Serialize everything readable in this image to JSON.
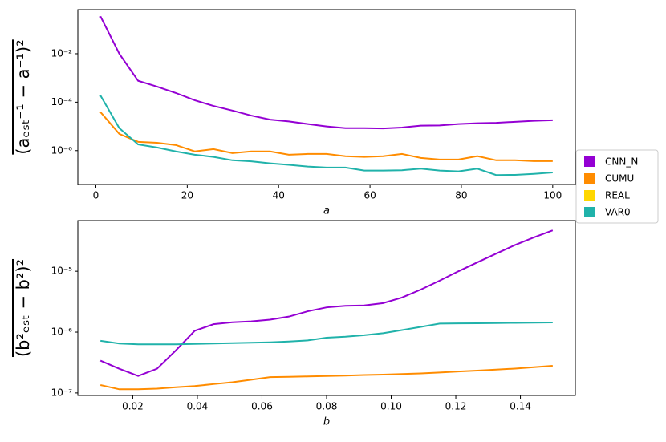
{
  "legend": "right",
  "chart_data": [
    {
      "type": "line",
      "xlabel": "a",
      "ylabel": "(aₑₛₜ⁻¹ − a⁻¹)²",
      "yscale": "log",
      "x": [
        1,
        5.125,
        9.25,
        13.375,
        17.5,
        21.625,
        25.75,
        29.875,
        34,
        38.125,
        42.25,
        46.375,
        50.5,
        54.625,
        58.75,
        62.875,
        67,
        71.125,
        75.25,
        79.375,
        83.5,
        87.625,
        91.75,
        95.875,
        100
      ],
      "xlim": [
        -3.95,
        104.95
      ],
      "xticks": [
        0,
        20,
        40,
        60,
        80,
        100
      ],
      "ylim": [
        4e-08,
        0.66
      ],
      "yticks": [
        {
          "value": 1e-06,
          "label": "10⁻⁶"
        },
        {
          "value": 0.0001,
          "label": "10⁻⁴"
        },
        {
          "value": 0.01,
          "label": "10⁻²"
        }
      ],
      "series": [
        {
          "name": "CNN_N",
          "color": "#9400d3",
          "values": [
            0.35,
            0.01,
            0.00076,
            0.00044,
            0.00024,
            0.00012,
            7e-05,
            4.5e-05,
            2.8e-05,
            1.9e-05,
            1.6e-05,
            1.25e-05,
            1e-05,
            8.5e-06,
            8.5e-06,
            8.2e-06,
            9e-06,
            1.07e-05,
            1.1e-05,
            1.25e-05,
            1.35e-05,
            1.4e-05,
            1.55e-05,
            1.7e-05,
            1.8e-05
          ]
        },
        {
          "name": "CUMU",
          "color": "#ff8c00",
          "values": [
            3.9e-05,
            4.9e-06,
            2.3e-06,
            2.1e-06,
            1.7e-06,
            9.3e-07,
            1.15e-06,
            7.9e-07,
            9.3e-07,
            9.3e-07,
            6.8e-07,
            7.3e-07,
            7.3e-07,
            5.9e-07,
            5.5e-07,
            5.9e-07,
            7.3e-07,
            5e-07,
            4.3e-07,
            4.3e-07,
            5.9e-07,
            4e-07,
            4e-07,
            3.7e-07,
            3.7e-07
          ]
        },
        {
          "name": "REAL",
          "color": "#ffd700",
          "values": [
            null,
            null,
            null,
            null,
            null,
            null,
            null,
            null,
            null,
            null,
            null,
            null,
            null,
            null,
            null,
            null,
            null,
            null,
            null,
            null,
            null,
            null,
            null,
            null,
            null
          ]
        },
        {
          "name": "VAR0",
          "color": "#20b2aa",
          "values": [
            0.00019,
            8.5e-06,
            1.8e-06,
            1.35e-06,
            9.3e-07,
            6.8e-07,
            5.5e-07,
            4e-07,
            3.6e-07,
            3e-07,
            2.6e-07,
            2.2e-07,
            2e-07,
            2e-07,
            1.5e-07,
            1.5e-07,
            1.55e-07,
            1.8e-07,
            1.5e-07,
            1.4e-07,
            1.8e-07,
            9.8e-08,
            1e-07,
            1.1e-07,
            1.25e-07
          ]
        }
      ]
    },
    {
      "type": "line",
      "xlabel": "b",
      "ylabel": "(b²ₑₛₜ − b²)²",
      "yscale": "log",
      "x": [
        0.01,
        0.01583,
        0.02167,
        0.0275,
        0.03333,
        0.03917,
        0.045,
        0.05083,
        0.05667,
        0.0625,
        0.06833,
        0.07417,
        0.08,
        0.08583,
        0.09167,
        0.0975,
        0.10333,
        0.10917,
        0.115,
        0.12083,
        0.12667,
        0.1325,
        0.13833,
        0.14417,
        0.15
      ],
      "xlim": [
        0.003,
        0.157
      ],
      "xticks": [
        0.02,
        0.04,
        0.06,
        0.08,
        {
          "value": 0.1,
          "label": "0.10"
        },
        0.12,
        0.14
      ],
      "ylim": [
        9.1e-08,
        6.8e-05
      ],
      "yticks": [
        {
          "value": 1e-07,
          "label": "10⁻⁷"
        },
        {
          "value": 1e-06,
          "label": "10⁻⁶"
        },
        {
          "value": 1e-05,
          "label": "10⁻⁵"
        }
      ],
      "series": [
        {
          "name": "CNN_N",
          "color": "#9400d3",
          "values": [
            3.4e-07,
            2.5e-07,
            1.9e-07,
            2.5e-07,
            5e-07,
            1.05e-06,
            1.35e-06,
            1.45e-06,
            1.5e-06,
            1.6e-06,
            1.8e-06,
            2.2e-06,
            2.55e-06,
            2.7e-06,
            2.75e-06,
            3e-06,
            3.7e-06,
            5e-06,
            7e-06,
            1e-05,
            1.4e-05,
            1.95e-05,
            2.7e-05,
            3.6e-05,
            4.7e-05
          ]
        },
        {
          "name": "CUMU",
          "color": "#ff8c00",
          "values": [
            1.35e-07,
            1.15e-07,
            1.15e-07,
            1.18e-07,
            1.24e-07,
            1.3e-07,
            1.4e-07,
            1.5e-07,
            1.65e-07,
            1.82e-07,
            1.84e-07,
            1.87e-07,
            1.9e-07,
            1.93e-07,
            1.97e-07,
            2e-07,
            2.05e-07,
            2.1e-07,
            2.17e-07,
            2.25e-07,
            2.33e-07,
            2.42e-07,
            2.52e-07,
            2.65e-07,
            2.8e-07
          ]
        },
        {
          "name": "REAL",
          "color": "#ffd700",
          "values": [
            null,
            null,
            null,
            null,
            null,
            null,
            null,
            null,
            null,
            null,
            null,
            null,
            null,
            null,
            null,
            null,
            null,
            null,
            null,
            null,
            null,
            null,
            null,
            null,
            null
          ]
        },
        {
          "name": "VAR0",
          "color": "#20b2aa",
          "values": [
            7.2e-07,
            6.5e-07,
            6.3e-07,
            6.3e-07,
            6.3e-07,
            6.4e-07,
            6.5e-07,
            6.6e-07,
            6.7e-07,
            6.8e-07,
            7e-07,
            7.3e-07,
            8.1e-07,
            8.4e-07,
            8.9e-07,
            9.6e-07,
            1.08e-06,
            1.22e-06,
            1.38e-06,
            1.39e-06,
            1.4e-06,
            1.41e-06,
            1.42e-06,
            1.43e-06,
            1.44e-06
          ]
        }
      ]
    }
  ]
}
